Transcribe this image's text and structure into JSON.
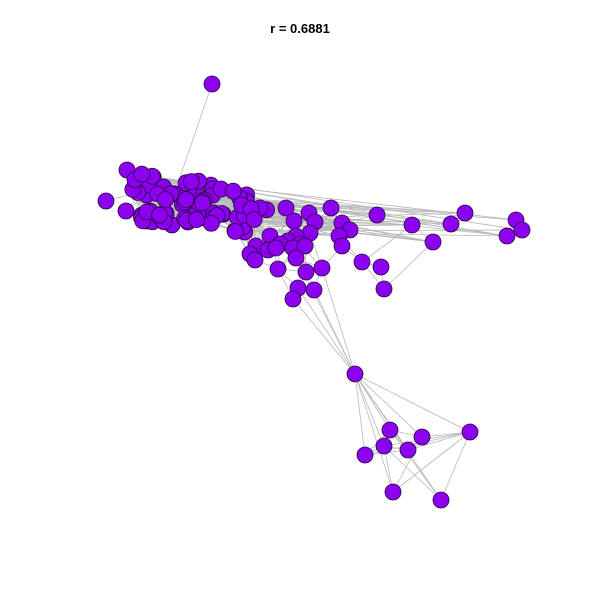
{
  "title": "r = 0.6881",
  "colors": {
    "node_fill": "#8b00ee",
    "node_stroke": "#2a0a40",
    "edge": "#b8b8b8",
    "background": "#ffffff"
  },
  "graph": {
    "type": "network",
    "node_count": 127
  }
}
